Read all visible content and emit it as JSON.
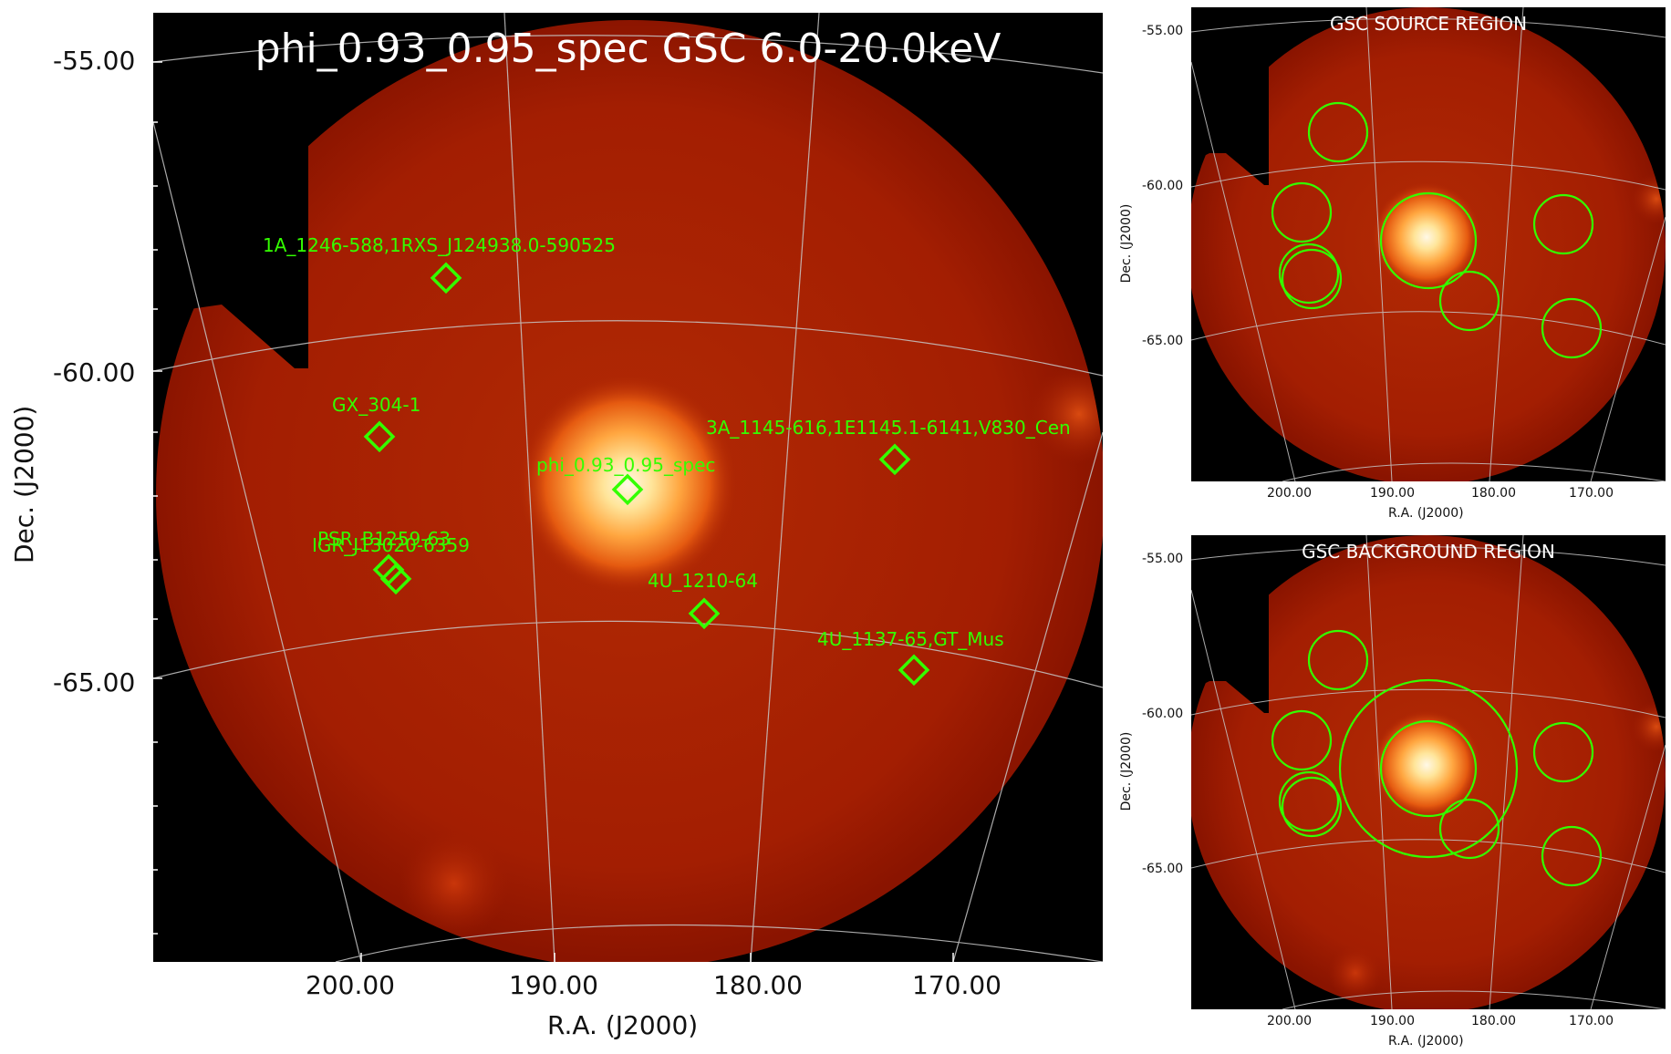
{
  "main": {
    "title": "phi_0.93_0.95_spec GSC 6.0-20.0keV",
    "xlabel": "R.A. (J2000)",
    "ylabel": "Dec. (J2000)",
    "dec_ticks": [
      "-55.00",
      "-60.00",
      "-65.00"
    ],
    "ra_ticks": [
      "200.00",
      "190.00",
      "180.00",
      "170.00"
    ],
    "sources": [
      {
        "name": "1A_1246-588,1RXS_J124938.0-590525"
      },
      {
        "name": "GX_304-1"
      },
      {
        "name": "3A_1145-616,1E1145.1-6141,V830_Cen"
      },
      {
        "name": "phi_0.93_0.95_spec"
      },
      {
        "name": "PSR_B1259-63"
      },
      {
        "name": "IGR_J13020-6359"
      },
      {
        "name": "4U_1210-64"
      },
      {
        "name": "4U_1137-65,GT_Mus"
      }
    ]
  },
  "source_panel": {
    "title": "GSC SOURCE REGION",
    "xlabel": "R.A. (J2000)",
    "ylabel": "Dec. (J2000)",
    "dec_ticks": [
      "-55.00",
      "-60.00",
      "-65.00"
    ],
    "ra_ticks": [
      "200.00",
      "190.00",
      "180.00",
      "170.00"
    ]
  },
  "background_panel": {
    "title": "GSC BACKGROUND REGION",
    "xlabel": "R.A. (J2000)",
    "ylabel": "Dec. (J2000)",
    "dec_ticks": [
      "-55.00",
      "-60.00",
      "-65.00"
    ],
    "ra_ticks": [
      "200.00",
      "190.00",
      "180.00",
      "170.00"
    ]
  },
  "colors": {
    "region": "#33ff00",
    "grid": "#c8c8c8",
    "background": "#000000",
    "emission": "#a81e00"
  }
}
